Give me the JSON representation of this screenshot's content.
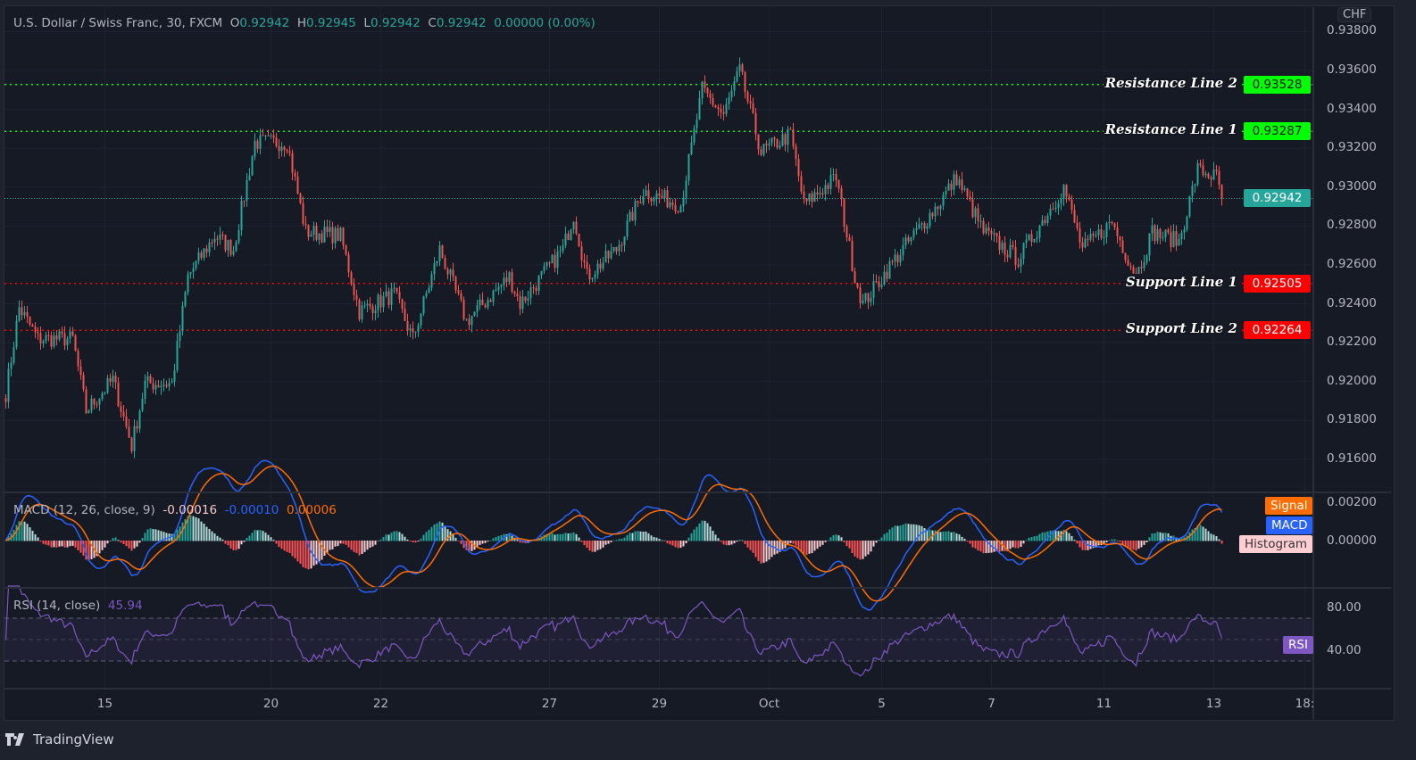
{
  "header": {
    "symbol": "U.S. Dollar / Swiss Franc, 30, FXCM",
    "o_label": "O",
    "o_value": "0.92942",
    "h_label": "H",
    "h_value": "0.92945",
    "l_label": "L",
    "l_value": "0.92942",
    "c_label": "C",
    "c_value": "0.92942",
    "change": "0.00000 (0.00%)"
  },
  "currency": "CHF",
  "price_axis": {
    "ticks": [
      "0.93800",
      "0.93600",
      "0.93400",
      "0.93200",
      "0.93000",
      "0.92800",
      "0.92600",
      "0.92400",
      "0.92200",
      "0.92000",
      "0.91800",
      "0.91600"
    ]
  },
  "current_price": "0.92942",
  "horizontal_lines": [
    {
      "label": "Resistance Line 2",
      "value": "0.93528",
      "color": "#00ff00"
    },
    {
      "label": "Resistance Line 1",
      "value": "0.93287",
      "color": "#00ff00"
    },
    {
      "label": "Support Line 1",
      "value": "0.92505",
      "color": "#ff0000"
    },
    {
      "label": "Support Line 2",
      "value": "0.92264",
      "color": "#ff0000"
    }
  ],
  "macd": {
    "title": "MACD (12, 26, close, 9)",
    "histogram": "-0.00016",
    "macd": "-0.00010",
    "signal": "0.00006",
    "tags": {
      "signal": "Signal",
      "macd": "MACD",
      "histogram": "Histogram"
    },
    "axis": [
      "0.00200",
      "0.00000"
    ]
  },
  "rsi": {
    "title": "RSI (14, close)",
    "value": "45.94",
    "tag": "RSI",
    "axis": [
      "80.00",
      "40.00"
    ]
  },
  "time_axis": [
    {
      "label": "15",
      "bar": 37
    },
    {
      "label": "20",
      "bar": 99
    },
    {
      "label": "22",
      "bar": 140
    },
    {
      "label": "27",
      "bar": 203
    },
    {
      "label": "29",
      "bar": 244
    },
    {
      "label": "Oct",
      "bar": 285
    },
    {
      "label": "5",
      "bar": 327
    },
    {
      "label": "7",
      "bar": 368
    },
    {
      "label": "11",
      "bar": 410
    },
    {
      "label": "13",
      "bar": 451
    },
    {
      "label": "18:",
      "bar": 485
    }
  ],
  "colors": {
    "up": "#26a69a",
    "down": "#ef5350",
    "macd": "#2962ff",
    "signal": "#ff6d00",
    "rsi": "#7e57c2"
  },
  "footer": {
    "brand": "TradingView"
  },
  "chart_data": {
    "type": "candlestick",
    "title": "U.S. Dollar / Swiss Franc, 30, FXCM",
    "ylim": [
      0.915,
      0.9385
    ],
    "approx_close_anchors": [
      [
        0,
        0.9194
      ],
      [
        5,
        0.9238
      ],
      [
        12,
        0.9222
      ],
      [
        25,
        0.9222
      ],
      [
        30,
        0.9185
      ],
      [
        40,
        0.9201
      ],
      [
        47,
        0.9167
      ],
      [
        52,
        0.9199
      ],
      [
        62,
        0.9199
      ],
      [
        68,
        0.9254
      ],
      [
        78,
        0.9275
      ],
      [
        85,
        0.9268
      ],
      [
        93,
        0.9323
      ],
      [
        105,
        0.9323
      ],
      [
        112,
        0.9277
      ],
      [
        125,
        0.9275
      ],
      [
        132,
        0.9236
      ],
      [
        145,
        0.9245
      ],
      [
        152,
        0.9222
      ],
      [
        162,
        0.9268
      ],
      [
        172,
        0.9231
      ],
      [
        188,
        0.9254
      ],
      [
        192,
        0.924
      ],
      [
        208,
        0.9268
      ],
      [
        212,
        0.9286
      ],
      [
        217,
        0.9254
      ],
      [
        228,
        0.9268
      ],
      [
        238,
        0.9298
      ],
      [
        252,
        0.9291
      ],
      [
        260,
        0.935
      ],
      [
        268,
        0.9337
      ],
      [
        274,
        0.936
      ],
      [
        282,
        0.9318
      ],
      [
        293,
        0.9327
      ],
      [
        298,
        0.9291
      ],
      [
        310,
        0.9305
      ],
      [
        317,
        0.9254
      ],
      [
        320,
        0.924
      ],
      [
        332,
        0.9263
      ],
      [
        348,
        0.9291
      ],
      [
        355,
        0.9305
      ],
      [
        365,
        0.9277
      ],
      [
        378,
        0.9263
      ],
      [
        395,
        0.93
      ],
      [
        402,
        0.9268
      ],
      [
        413,
        0.9282
      ],
      [
        422,
        0.9254
      ],
      [
        428,
        0.9277
      ],
      [
        438,
        0.9272
      ],
      [
        445,
        0.9309
      ],
      [
        452,
        0.9305
      ],
      [
        454,
        0.92942
      ]
    ]
  }
}
